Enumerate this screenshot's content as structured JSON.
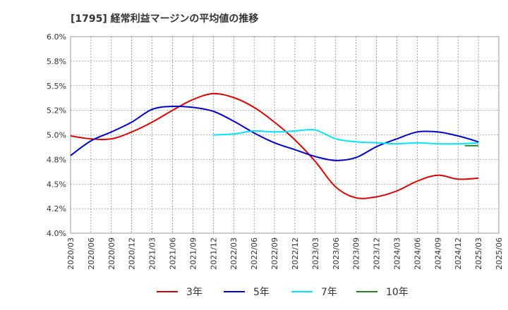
{
  "chart_data": {
    "type": "line",
    "title": "[1795]  経常利益マージンの平均値の推移",
    "xlabel": "",
    "ylabel": "",
    "ylim": [
      4.0,
      6.0
    ],
    "y_ticks": [
      "6.0%",
      "5.8%",
      "5.5%",
      "5.2%",
      "5.0%",
      "4.8%",
      "4.5%",
      "4.2%",
      "4.0%"
    ],
    "x_ticks": [
      "2020/03",
      "2020/06",
      "2020/09",
      "2020/12",
      "2021/03",
      "2021/06",
      "2021/09",
      "2021/12",
      "2022/03",
      "2022/06",
      "2022/09",
      "2022/12",
      "2023/03",
      "2023/06",
      "2023/09",
      "2023/12",
      "2024/03",
      "2024/06",
      "2024/09",
      "2024/12",
      "2025/03",
      "2025/06"
    ],
    "grid": true,
    "legend_position": "bottom",
    "series": [
      {
        "name": "3年",
        "color": "#dd0000",
        "points": [
          [
            "2020/03",
            4.99
          ],
          [
            "2020/06",
            4.96
          ],
          [
            "2020/09",
            4.96
          ],
          [
            "2020/12",
            5.03
          ],
          [
            "2021/03",
            5.13
          ],
          [
            "2021/06",
            5.25
          ],
          [
            "2021/09",
            5.36
          ],
          [
            "2021/12",
            5.42
          ],
          [
            "2022/03",
            5.38
          ],
          [
            "2022/06",
            5.28
          ],
          [
            "2022/09",
            5.13
          ],
          [
            "2022/12",
            4.95
          ],
          [
            "2023/03",
            4.73
          ],
          [
            "2023/06",
            4.47
          ],
          [
            "2023/09",
            4.36
          ],
          [
            "2023/12",
            4.37
          ],
          [
            "2024/03",
            4.43
          ],
          [
            "2024/06",
            4.53
          ],
          [
            "2024/09",
            4.59
          ],
          [
            "2024/12",
            4.55
          ],
          [
            "2025/03",
            4.56
          ]
        ]
      },
      {
        "name": "5年",
        "color": "#0000cc",
        "points": [
          [
            "2020/03",
            4.79
          ],
          [
            "2020/06",
            4.94
          ],
          [
            "2020/09",
            5.03
          ],
          [
            "2020/12",
            5.13
          ],
          [
            "2021/03",
            5.26
          ],
          [
            "2021/06",
            5.29
          ],
          [
            "2021/09",
            5.28
          ],
          [
            "2021/12",
            5.24
          ],
          [
            "2022/03",
            5.14
          ],
          [
            "2022/06",
            5.02
          ],
          [
            "2022/09",
            4.92
          ],
          [
            "2022/12",
            4.85
          ],
          [
            "2023/03",
            4.78
          ],
          [
            "2023/06",
            4.74
          ],
          [
            "2023/09",
            4.77
          ],
          [
            "2023/12",
            4.88
          ],
          [
            "2024/03",
            4.96
          ],
          [
            "2024/06",
            5.03
          ],
          [
            "2024/09",
            5.03
          ],
          [
            "2024/12",
            4.99
          ],
          [
            "2025/03",
            4.93
          ]
        ]
      },
      {
        "name": "7年",
        "color": "#00e5ff",
        "points": [
          [
            "2021/12",
            5.0
          ],
          [
            "2022/03",
            5.01
          ],
          [
            "2022/06",
            5.04
          ],
          [
            "2022/09",
            5.03
          ],
          [
            "2022/12",
            5.04
          ],
          [
            "2023/03",
            5.05
          ],
          [
            "2023/06",
            4.96
          ],
          [
            "2023/09",
            4.93
          ],
          [
            "2023/12",
            4.92
          ],
          [
            "2024/03",
            4.91
          ],
          [
            "2024/06",
            4.92
          ],
          [
            "2024/09",
            4.91
          ],
          [
            "2024/12",
            4.91
          ],
          [
            "2025/03",
            4.92
          ]
        ]
      },
      {
        "name": "10年",
        "color": "#228822",
        "points": [
          [
            "2025/01",
            4.89
          ],
          [
            "2025/03",
            4.89
          ]
        ]
      }
    ]
  }
}
